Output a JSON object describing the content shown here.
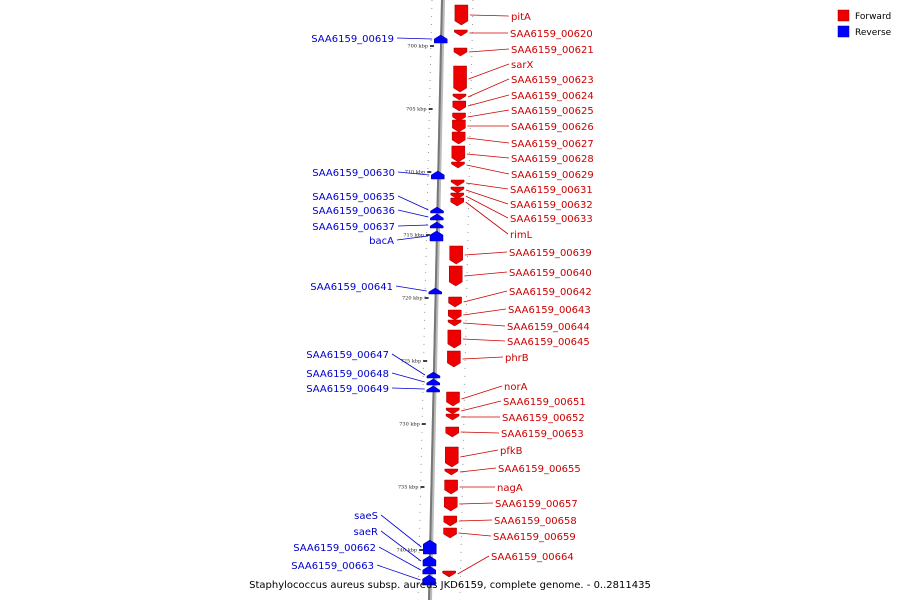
{
  "caption": "Staphylococcus aureus subsp. aureus JKD6159, complete genome. - 0..2811435",
  "legend": [
    {
      "label": "Forward",
      "color": "#ee0000"
    },
    {
      "label": "Reverse",
      "color": "#0000ff"
    }
  ],
  "scale_ticks": [
    "700 kbp",
    "705 kbp",
    "710 kbp",
    "715 kbp",
    "720 kbp",
    "725 kbp",
    "730 kbp",
    "735 kbp",
    "740 kbp"
  ],
  "forward_genes": [
    "pitA",
    "SAA6159_00620",
    "SAA6159_00621",
    "sarX",
    "SAA6159_00623",
    "SAA6159_00624",
    "SAA6159_00625",
    "SAA6159_00626",
    "SAA6159_00627",
    "SAA6159_00628",
    "SAA6159_00629",
    "SAA6159_00631",
    "SAA6159_00632",
    "SAA6159_00633",
    "rimL",
    "SAA6159_00639",
    "SAA6159_00640",
    "SAA6159_00642",
    "SAA6159_00643",
    "SAA6159_00644",
    "SAA6159_00645",
    "phrB",
    "norA",
    "SAA6159_00651",
    "SAA6159_00652",
    "SAA6159_00653",
    "pfkB",
    "SAA6159_00655",
    "nagA",
    "SAA6159_00657",
    "SAA6159_00658",
    "SAA6159_00659",
    "SAA6159_00664"
  ],
  "reverse_genes": [
    "SAA6159_00619",
    "SAA6159_00630",
    "SAA6159_00635",
    "SAA6159_00636",
    "SAA6159_00637",
    "bacA",
    "SAA6159_00641",
    "SAA6159_00647",
    "SAA6159_00648",
    "SAA6159_00649",
    "saeS",
    "saeR",
    "SAA6159_00662",
    "SAA6159_00663"
  ]
}
